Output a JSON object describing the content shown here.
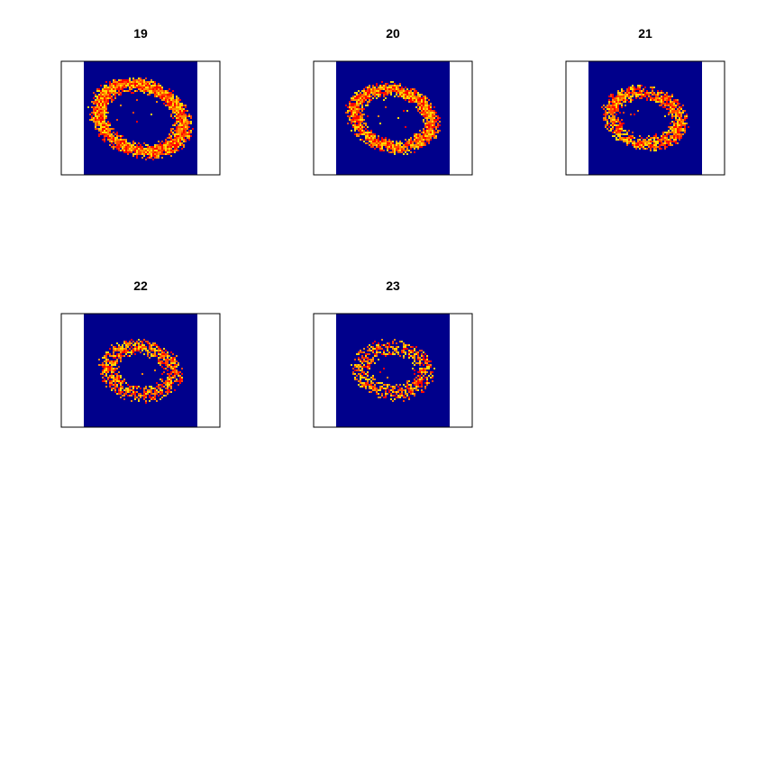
{
  "chart_data": [
    {
      "type": "heatmap",
      "title": "19",
      "image": {
        "shape": "ring",
        "background_color": "#00008B",
        "ring_colors": [
          "#FF0000",
          "#FF4500",
          "#FF8C00",
          "#FFD700"
        ],
        "ring_radius_x": 0.38,
        "ring_radius_y": 0.28,
        "ring_width": 0.14,
        "tilt_deg": 20,
        "density": 0.9
      }
    },
    {
      "type": "heatmap",
      "title": "20",
      "image": {
        "shape": "ring",
        "background_color": "#00008B",
        "ring_colors": [
          "#FF0000",
          "#FF4500",
          "#FF8C00",
          "#FFD700"
        ],
        "ring_radius_x": 0.34,
        "ring_radius_y": 0.25,
        "ring_width": 0.13,
        "tilt_deg": 15,
        "density": 0.82
      }
    },
    {
      "type": "heatmap",
      "title": "21",
      "image": {
        "shape": "ring",
        "background_color": "#00008B",
        "ring_colors": [
          "#FF0000",
          "#FF4500",
          "#FF8C00",
          "#FFD700"
        ],
        "ring_radius_x": 0.3,
        "ring_radius_y": 0.22,
        "ring_width": 0.14,
        "tilt_deg": 12,
        "density": 0.75
      }
    },
    {
      "type": "heatmap",
      "title": "22",
      "image": {
        "shape": "ring",
        "background_color": "#00008B",
        "ring_colors": [
          "#FF0000",
          "#FF4500",
          "#FF8C00",
          "#FFD700"
        ],
        "ring_radius_x": 0.28,
        "ring_radius_y": 0.21,
        "ring_width": 0.15,
        "tilt_deg": 8,
        "density": 0.62
      }
    },
    {
      "type": "heatmap",
      "title": "23",
      "image": {
        "shape": "ring",
        "background_color": "#00008B",
        "ring_colors": [
          "#FF0000",
          "#FF4500",
          "#FF8C00",
          "#FFD700"
        ],
        "ring_radius_x": 0.27,
        "ring_radius_y": 0.2,
        "ring_width": 0.15,
        "tilt_deg": 5,
        "density": 0.5
      }
    }
  ]
}
